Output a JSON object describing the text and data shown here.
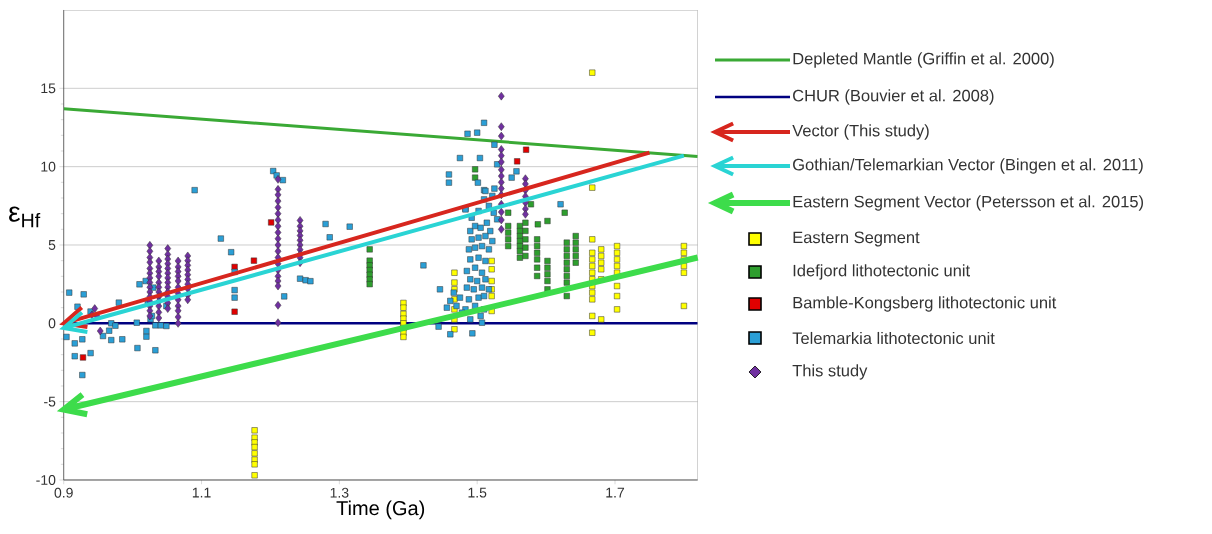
{
  "chart_data": {
    "type": "scatter",
    "xlabel": "Time (Ga)",
    "ylabel": "ε$_{Hf}$",
    "xlim": [
      0.9,
      1.82
    ],
    "ylim": [
      -10,
      20
    ],
    "xticks": [
      0.9,
      1.1,
      1.3,
      1.5,
      1.7
    ],
    "yticks": [
      -10,
      -5,
      0,
      5,
      10,
      15
    ],
    "grid": "y",
    "legend": "right",
    "series": [
      {
        "name": "Depleted Mantle (Griffin et al. 2000)",
        "type": "line",
        "marker": "none",
        "color": "#3aa935",
        "x": [
          0.9,
          1.82
        ],
        "values": [
          13.7,
          10.65
        ]
      },
      {
        "name": "CHUR (Bouvier et al. 2008)",
        "type": "line",
        "marker": "none",
        "color": "#000080",
        "x": [
          0.9,
          1.82
        ],
        "values": [
          0,
          0
        ]
      },
      {
        "name": "Vector (This study)",
        "type": "line",
        "marker": "none",
        "color": "#d7261e",
        "x": [
          1.75,
          0.9
        ],
        "values": [
          10.9,
          0
        ]
      },
      {
        "name": "Gothian/Telemarkian Vector (Bingen et al. 2011)",
        "type": "line",
        "marker": "none",
        "color": "#2ad4d4",
        "x": [
          1.8,
          0.9
        ],
        "values": [
          10.7,
          -0.3
        ]
      },
      {
        "name": "Eastern Segment Vector (Petersson et al. 2015)",
        "type": "line",
        "marker": "none",
        "color": "#3ddc4b",
        "x": [
          1.82,
          0.9
        ],
        "values": [
          4.2,
          -5.5
        ]
      },
      {
        "name": "Eastern Segment",
        "type": "scatter",
        "marker": "square",
        "color": "#ffff00",
        "x": [
          1.177,
          1.177,
          1.177,
          1.177,
          1.177,
          1.177,
          1.177,
          1.177,
          1.393,
          1.393,
          1.393,
          1.393,
          1.393,
          1.393,
          1.393,
          1.393,
          1.467,
          1.467,
          1.467,
          1.467,
          1.467,
          1.467,
          1.467,
          1.521,
          1.521,
          1.521,
          1.521,
          1.521,
          1.521,
          1.667,
          1.667,
          1.667,
          1.667,
          1.667,
          1.667,
          1.667,
          1.667,
          1.667,
          1.667,
          1.667,
          1.667,
          1.667,
          1.68,
          1.68,
          1.68,
          1.68,
          1.68,
          1.68,
          1.703,
          1.703,
          1.703,
          1.703,
          1.703,
          1.703,
          1.703,
          1.703,
          1.8,
          1.8,
          1.8,
          1.8,
          1.8,
          1.8
        ],
        "values": [
          -6.83,
          -7.3,
          -7.6,
          -7.9,
          -8.3,
          -8.7,
          -9.0,
          -9.7,
          1.3,
          1.0,
          0.6,
          0.3,
          0.0,
          -0.3,
          -0.6,
          -0.87,
          3.23,
          2.6,
          2.17,
          1.53,
          0.89,
          0.25,
          -0.38,
          3.98,
          3.45,
          2.7,
          2.17,
          1.74,
          0.79,
          16,
          8.66,
          5.36,
          4.5,
          4.08,
          3.66,
          3.23,
          2.81,
          2.38,
          1.96,
          1.53,
          0.47,
          -0.6,
          4.72,
          4.3,
          3.87,
          3.45,
          2.81,
          0.25,
          4.93,
          4.5,
          4.08,
          3.66,
          3.23,
          2.38,
          1.74,
          0.89,
          4.93,
          4.5,
          4.08,
          3.66,
          3.23,
          1.11
        ]
      },
      {
        "name": "Idefjord lithotectonic unit",
        "type": "scatter",
        "marker": "square",
        "color": "#2e9e2e",
        "x": [
          1.344,
          1.344,
          1.344,
          1.344,
          1.344,
          1.344,
          1.344,
          1.497,
          1.497,
          1.545,
          1.545,
          1.545,
          1.545,
          1.545,
          1.562,
          1.562,
          1.562,
          1.562,
          1.562,
          1.562,
          1.562,
          1.57,
          1.57,
          1.57,
          1.57,
          1.57,
          1.578,
          1.588,
          1.587,
          1.587,
          1.587,
          1.587,
          1.587,
          1.587,
          1.602,
          1.602,
          1.602,
          1.602,
          1.602,
          1.602,
          1.627,
          1.63,
          1.63,
          1.63,
          1.63,
          1.63,
          1.63,
          1.63,
          1.63,
          1.643,
          1.643,
          1.643,
          1.643,
          1.643
        ],
        "values": [
          4.72,
          4.0,
          3.7,
          3.4,
          3.1,
          2.8,
          2.5,
          9.83,
          9.3,
          7.06,
          6.21,
          5.79,
          5.36,
          4.93,
          6.21,
          5.89,
          5.57,
          5.25,
          4.93,
          4.61,
          4.19,
          6.42,
          5.9,
          5.36,
          4.83,
          4.3,
          7.6,
          6.32,
          5.36,
          4.93,
          4.5,
          4.08,
          3.55,
          3.02,
          6.53,
          3.98,
          3.55,
          3.13,
          2.7,
          2.17,
          7.06,
          5.15,
          4.72,
          4.3,
          3.87,
          3.45,
          3.02,
          2.6,
          1.74,
          5.57,
          5.15,
          4.72,
          4.3,
          3.87
        ]
      },
      {
        "name": "Bamble-Kongsberg lithotectonic unit",
        "type": "scatter",
        "marker": "square",
        "color": "#e00000",
        "x": [
          1.148,
          1.148,
          1.176,
          0.928,
          1.201,
          1.571,
          1.558
        ],
        "values": [
          0.74,
          3.6,
          4.0,
          -2.18,
          6.44,
          11.08,
          10.34
        ]
      },
      {
        "name": "Telemarkia lithotectonic unit",
        "type": "scatter",
        "marker": "square",
        "color": "#2b9fd6",
        "x": [
          0.908,
          0.929,
          0.92,
          0.904,
          0.916,
          0.916,
          0.927,
          0.927,
          0.939,
          0.939,
          0.957,
          0.966,
          0.969,
          0.98,
          0.985,
          0.969,
          0.975,
          1.01,
          1.006,
          1.007,
          1.02,
          1.02,
          1.033,
          1.026,
          1.033,
          1.041,
          1.049,
          1.022,
          1.028,
          1.049,
          1.019,
          1.03,
          1.09,
          1.128,
          1.143,
          1.148,
          1.148,
          1.148,
          1.204,
          1.209,
          1.218,
          1.243,
          1.251,
          1.258,
          1.22,
          1.28,
          1.315,
          1.286,
          1.422,
          1.459,
          1.459,
          1.51,
          1.486,
          1.5,
          1.525,
          1.475,
          1.504,
          1.529,
          1.55,
          1.557,
          1.501,
          1.51,
          1.525,
          1.483,
          1.621,
          1.444,
          1.461,
          1.493,
          1.507,
          1.446,
          1.456,
          1.49,
          1.497,
          1.505,
          1.514,
          1.519,
          1.492,
          1.502,
          1.512,
          1.522,
          1.488,
          1.497,
          1.507,
          1.517,
          1.49,
          1.502,
          1.512,
          1.497,
          1.485,
          1.507,
          1.49,
          1.5,
          1.512,
          1.485,
          1.495,
          1.507,
          1.517,
          1.466,
          1.475,
          1.488,
          1.502,
          1.51,
          1.461,
          1.47,
          1.483,
          1.497,
          1.51,
          1.478,
          1.505,
          1.49,
          1.512,
          1.522,
          1.51,
          1.517,
          1.502,
          1.492,
          1.483,
          1.524,
          1.529
        ],
        "values": [
          1.96,
          1.85,
          1.06,
          -0.87,
          -1.28,
          -2.1,
          -1.02,
          -3.3,
          -1.9,
          0.75,
          -0.81,
          -0.47,
          0,
          1.32,
          -1.02,
          -1.07,
          -0.15,
          2.49,
          0.04,
          -1.58,
          -0.85,
          -0.49,
          -1.72,
          0.26,
          -0.13,
          -0.13,
          -0.17,
          1.42,
          0.47,
          1.1,
          2.7,
          2.28,
          8.5,
          5.41,
          4.54,
          3.28,
          2.12,
          1.64,
          9.72,
          9.44,
          9.14,
          2.85,
          2.75,
          2.69,
          1.72,
          6.34,
          6.17,
          5.49,
          3.7,
          9.5,
          8.98,
          12.8,
          12.1,
          12.17,
          11.4,
          10.55,
          10.55,
          10.15,
          9.3,
          9.7,
          8.98,
          8.5,
          8.6,
          7.32,
          7.6,
          -0.21,
          -0.7,
          -0.64,
          0.04,
          2.17,
          1.0,
          5.89,
          6.21,
          6.1,
          6.42,
          5.89,
          5.36,
          5.47,
          5.57,
          5.25,
          4.72,
          4.83,
          4.93,
          4.72,
          4.08,
          4.19,
          3.98,
          3.55,
          3.34,
          3.23,
          2.81,
          2.7,
          2.81,
          2.28,
          2.17,
          2.28,
          2.17,
          1.96,
          1.64,
          1.53,
          1.64,
          1.74,
          1.43,
          1.11,
          0.89,
          1.11,
          0.89,
          0.68,
          0.47,
          0.25,
          8.45,
          8.13,
          7.91,
          7.49,
          7.17,
          6.74,
          7.27,
          7.06,
          6.64
        ]
      },
      {
        "name": "This study",
        "type": "scatter",
        "marker": "diamond",
        "color": "#7030a0",
        "x": [
          0.945,
          0.948,
          0.953,
          0.941,
          1.025,
          1.025,
          1.025,
          1.025,
          1.025,
          1.025,
          1.025,
          1.025,
          1.025,
          1.025,
          1.025,
          1.025,
          1.025,
          1.025,
          1.025,
          1.038,
          1.038,
          1.038,
          1.038,
          1.038,
          1.038,
          1.038,
          1.038,
          1.038,
          1.038,
          1.038,
          1.038,
          1.051,
          1.051,
          1.051,
          1.051,
          1.051,
          1.051,
          1.051,
          1.051,
          1.051,
          1.051,
          1.051,
          1.051,
          1.051,
          1.066,
          1.066,
          1.066,
          1.066,
          1.066,
          1.066,
          1.066,
          1.066,
          1.066,
          1.066,
          1.066,
          1.066,
          1.08,
          1.08,
          1.08,
          1.08,
          1.08,
          1.08,
          1.08,
          1.08,
          1.08,
          1.08,
          1.211,
          1.211,
          1.211,
          1.211,
          1.211,
          1.211,
          1.211,
          1.211,
          1.211,
          1.211,
          1.211,
          1.211,
          1.211,
          1.211,
          1.211,
          1.211,
          1.211,
          1.211,
          1.211,
          1.211,
          1.243,
          1.243,
          1.243,
          1.243,
          1.243,
          1.243,
          1.243,
          1.243,
          1.243,
          1.243,
          1.535,
          1.535,
          1.535,
          1.535,
          1.535,
          1.535,
          1.535,
          1.535,
          1.535,
          1.535,
          1.535,
          1.535,
          1.535,
          1.535,
          1.535,
          1.57,
          1.57,
          1.57,
          1.57,
          1.57,
          1.57,
          1.57
        ],
        "values": [
          0.94,
          0.47,
          -0.49,
          0.54,
          4.98,
          4.6,
          4.2,
          3.9,
          3.5,
          3.2,
          2.9,
          2.6,
          2.3,
          2.0,
          1.7,
          1.4,
          1.1,
          0.8,
          0.47,
          3.98,
          3.6,
          3.3,
          3.0,
          2.6,
          2.3,
          2.0,
          1.7,
          1.4,
          1.1,
          0.7,
          0.34,
          4.77,
          4.4,
          4.1,
          3.8,
          3.5,
          3.2,
          2.9,
          2.6,
          2.3,
          2.0,
          1.7,
          1.3,
          0.94,
          3.98,
          3.6,
          3.3,
          3.0,
          2.7,
          2.3,
          1.9,
          1.5,
          1.1,
          0.8,
          0.4,
          0,
          4.3,
          4.0,
          3.7,
          3.4,
          3.1,
          2.8,
          2.5,
          2.2,
          1.8,
          1.5,
          9.19,
          8.55,
          8.2,
          7.8,
          7.4,
          7.0,
          6.6,
          6.2,
          5.8,
          5.4,
          5.0,
          4.6,
          4.2,
          3.8,
          3.4,
          3.0,
          2.7,
          2.38,
          1.15,
          0.04,
          6.57,
          6.2,
          5.9,
          5.6,
          5.3,
          5.0,
          4.7,
          4.4,
          4.19,
          3.87,
          14.5,
          12.55,
          11.95,
          11.1,
          10.7,
          10.3,
          9.8,
          9.4,
          9.0,
          8.6,
          8.2,
          7.6,
          7.1,
          6.6,
          6.0,
          9.23,
          8.9,
          8.5,
          8.1,
          7.7,
          7.3,
          6.96
        ]
      }
    ]
  }
}
